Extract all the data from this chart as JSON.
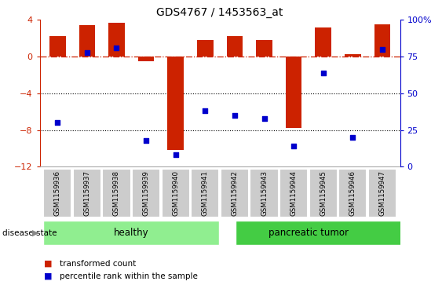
{
  "title": "GDS4767 / 1453563_at",
  "categories": [
    "GSM1159936",
    "GSM1159937",
    "GSM1159938",
    "GSM1159939",
    "GSM1159940",
    "GSM1159941",
    "GSM1159942",
    "GSM1159943",
    "GSM1159944",
    "GSM1159945",
    "GSM1159946",
    "GSM1159947"
  ],
  "bar_values": [
    2.2,
    3.4,
    3.7,
    -0.5,
    -10.2,
    1.8,
    2.2,
    1.8,
    -7.8,
    3.2,
    0.3,
    3.5
  ],
  "percentile_values": [
    30,
    78,
    81,
    18,
    8,
    38,
    35,
    33,
    14,
    64,
    20,
    80
  ],
  "bar_color": "#cc2200",
  "dot_color": "#0000cc",
  "ylim_left": [
    -12,
    4
  ],
  "ylim_right": [
    0,
    100
  ],
  "yticks_left": [
    4,
    0,
    -4,
    -8,
    -12
  ],
  "yticks_right": [
    100,
    75,
    50,
    25,
    0
  ],
  "dotted_lines": [
    -4,
    -8
  ],
  "group1_label": "healthy",
  "group2_label": "pancreatic tumor",
  "group1_count": 6,
  "group2_count": 6,
  "group_color": "#90ee90",
  "group_color2": "#44cc44",
  "disease_state_label": "disease state",
  "legend1": "transformed count",
  "legend2": "percentile rank within the sample",
  "left_axis_color": "#cc2200",
  "right_axis_color": "#0000cc",
  "label_bg_color": "#cccccc",
  "label_edge_color": "#ffffff"
}
